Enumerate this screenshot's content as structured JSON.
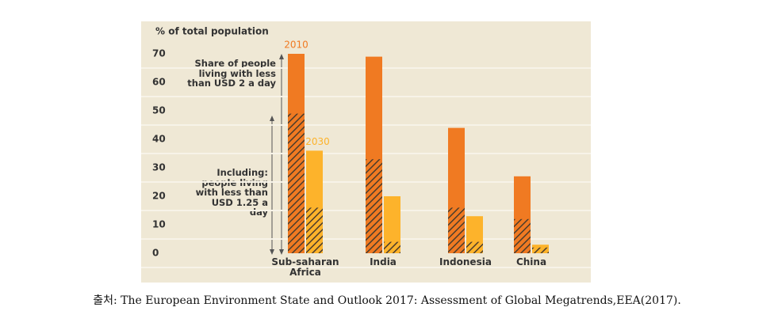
{
  "chart_data": {
    "type": "bar",
    "y_label": "% of total population",
    "categories": [
      "Sub-saharan Africa",
      "India",
      "Indonesia",
      "China"
    ],
    "series": [
      {
        "name": "2010",
        "color": "#f07a22",
        "values": [
          70,
          69,
          44,
          27
        ],
        "subset_values": [
          49,
          33,
          16,
          12
        ]
      },
      {
        "name": "2030",
        "color": "#fdb32b",
        "values": [
          36,
          20,
          13,
          3
        ],
        "subset_values": [
          16,
          4,
          4,
          2
        ]
      }
    ],
    "annotations": [
      "Share of people living with less than USD 2 a day",
      "Including: people living with less than USD 1.25 a day"
    ],
    "ylim": [
      0,
      70
    ],
    "yticks": [
      0,
      10,
      20,
      30,
      40,
      50,
      60,
      70
    ],
    "grid": true
  },
  "caption": "출처: The European Environment State and Outlook 2017: Assessment of Global Megatrends,EEA(2017)."
}
